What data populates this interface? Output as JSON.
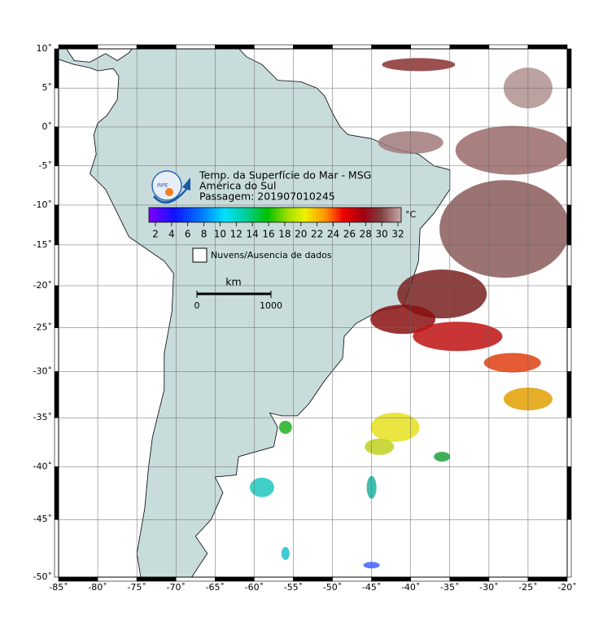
{
  "map": {
    "latlim": [
      -50,
      10
    ],
    "lonlim": [
      -85,
      -20
    ],
    "lat_ticks": [
      {
        "value": 10,
        "label": "10˚"
      },
      {
        "value": 5,
        "label": "5˚"
      },
      {
        "value": 0,
        "label": "0˚"
      },
      {
        "value": -5,
        "label": "-5˚"
      },
      {
        "value": -10,
        "label": "-10˚"
      },
      {
        "value": -15,
        "label": "-15˚"
      },
      {
        "value": -20,
        "label": "-20˚"
      },
      {
        "value": -25,
        "label": "-25˚"
      },
      {
        "value": -30,
        "label": "-30˚"
      },
      {
        "value": -35,
        "label": "-35˚"
      },
      {
        "value": -40,
        "label": "-40˚"
      },
      {
        "value": -45,
        "label": "-45˚"
      },
      {
        "value": -50,
        "label": "-50˚"
      }
    ],
    "lon_ticks": [
      {
        "value": -85,
        "label": "-85˚"
      },
      {
        "value": -80,
        "label": "-80˚"
      },
      {
        "value": -75,
        "label": "-75˚"
      },
      {
        "value": -70,
        "label": "-70˚"
      },
      {
        "value": -65,
        "label": "-65˚"
      },
      {
        "value": -60,
        "label": "-60˚"
      },
      {
        "value": -55,
        "label": "-55˚"
      },
      {
        "value": -50,
        "label": "-50˚"
      },
      {
        "value": -45,
        "label": "-45˚"
      },
      {
        "value": -40,
        "label": "-40˚"
      },
      {
        "value": -35,
        "label": "-35˚"
      },
      {
        "value": -30,
        "label": "-30˚"
      },
      {
        "value": -25,
        "label": "-25˚"
      },
      {
        "value": -20,
        "label": "-20˚"
      }
    ],
    "title": "Temp. da Superfície do Mar - MSG",
    "subtitle": "América do Sul",
    "pass": "Passagem: 201907010245",
    "logo_text": "INPE",
    "colorbar": {
      "lim": [
        1.2,
        32.4
      ],
      "ticks": [
        2,
        4,
        6,
        8,
        10,
        12,
        14,
        16,
        18,
        20,
        22,
        24,
        26,
        28,
        30,
        32
      ],
      "unit": "°C"
    },
    "legend": "Nuvens/Ausencia de dados",
    "scale": {
      "unit": "km",
      "ticks": [
        0,
        1000
      ]
    }
  }
}
